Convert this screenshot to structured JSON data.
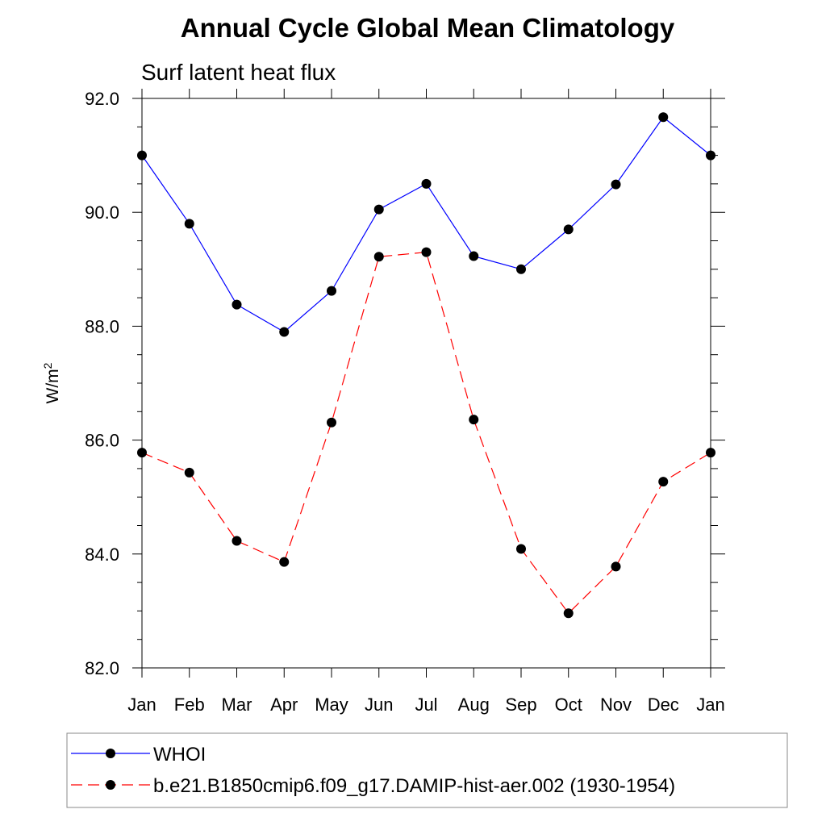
{
  "chart_data": {
    "type": "line",
    "title": "Annual Cycle Global Mean Climatology",
    "subtitle": "Surf latent heat flux",
    "ylabel_base": "W/m",
    "ylabel_sup": "2",
    "xlabel": "",
    "categories": [
      "Jan",
      "Feb",
      "Mar",
      "Apr",
      "May",
      "Jun",
      "Jul",
      "Aug",
      "Sep",
      "Oct",
      "Nov",
      "Dec",
      "Jan"
    ],
    "ylim": [
      82.0,
      92.0
    ],
    "yticks": [
      "82.0",
      "84.0",
      "86.0",
      "88.0",
      "90.0",
      "92.0"
    ],
    "grid": false,
    "legend_position": "bottom",
    "series": [
      {
        "name": "WHOI",
        "color": "#0000ff",
        "dash": "solid",
        "values": [
          91.0,
          89.8,
          88.38,
          87.9,
          88.62,
          90.05,
          90.5,
          89.23,
          89.0,
          89.7,
          90.49,
          91.67,
          91.0
        ]
      },
      {
        "name": "b.e21.B1850cmip6.f09_g17.DAMIP-hist-aer.002 (1930-1954)",
        "color": "#ff0000",
        "dash": "dashed",
        "values": [
          85.78,
          85.43,
          84.23,
          83.86,
          86.31,
          89.22,
          89.3,
          86.36,
          84.09,
          82.96,
          83.78,
          85.27,
          85.78
        ]
      }
    ]
  }
}
